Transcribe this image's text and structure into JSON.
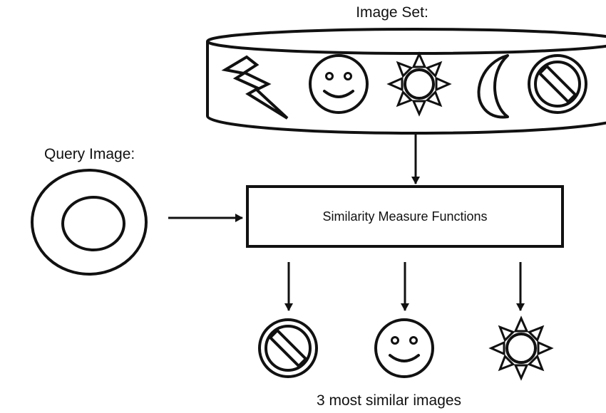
{
  "image_set": {
    "label": "Image Set:",
    "items": [
      "lightning-icon",
      "smiley-icon",
      "sun-icon",
      "moon-icon",
      "prohibited-icon"
    ]
  },
  "query": {
    "label": "Query Image:",
    "item": "ring-icon"
  },
  "process": {
    "label": "Similarity Measure Functions"
  },
  "results": {
    "label": "3 most similar images",
    "items": [
      "prohibited-icon",
      "smiley-icon",
      "sun-icon"
    ]
  },
  "colors": {
    "stroke": "#111111",
    "background": "#ffffff"
  }
}
